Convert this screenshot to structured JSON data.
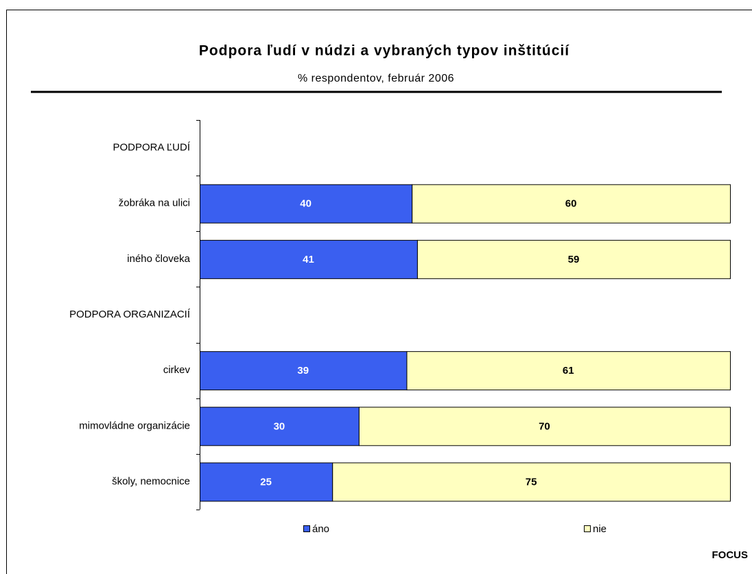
{
  "chart_data": {
    "type": "stacked_barh",
    "title": "Podpora ľudí v núdzi a vybraných typov inštitúcií",
    "subtitle": "% respondentov, február 2006",
    "categories": [
      "PODPORA ĽUDÍ",
      "žobráka na ulici",
      "iného človeka",
      "PODPORA ORGANIZACIÍ",
      "cirkev",
      "mimovládne organizácie",
      "školy, nemocnice"
    ],
    "series": [
      {
        "name": "áno",
        "color": "#3a5ff0",
        "label_color": "#ffffff",
        "values": [
          null,
          40,
          41,
          null,
          39,
          30,
          25
        ]
      },
      {
        "name": "nie",
        "color": "#ffffc0",
        "label_color": "#000000",
        "values": [
          null,
          60,
          59,
          null,
          61,
          70,
          75
        ]
      }
    ],
    "xlim": [
      0,
      100
    ],
    "source": "FOCUS"
  }
}
